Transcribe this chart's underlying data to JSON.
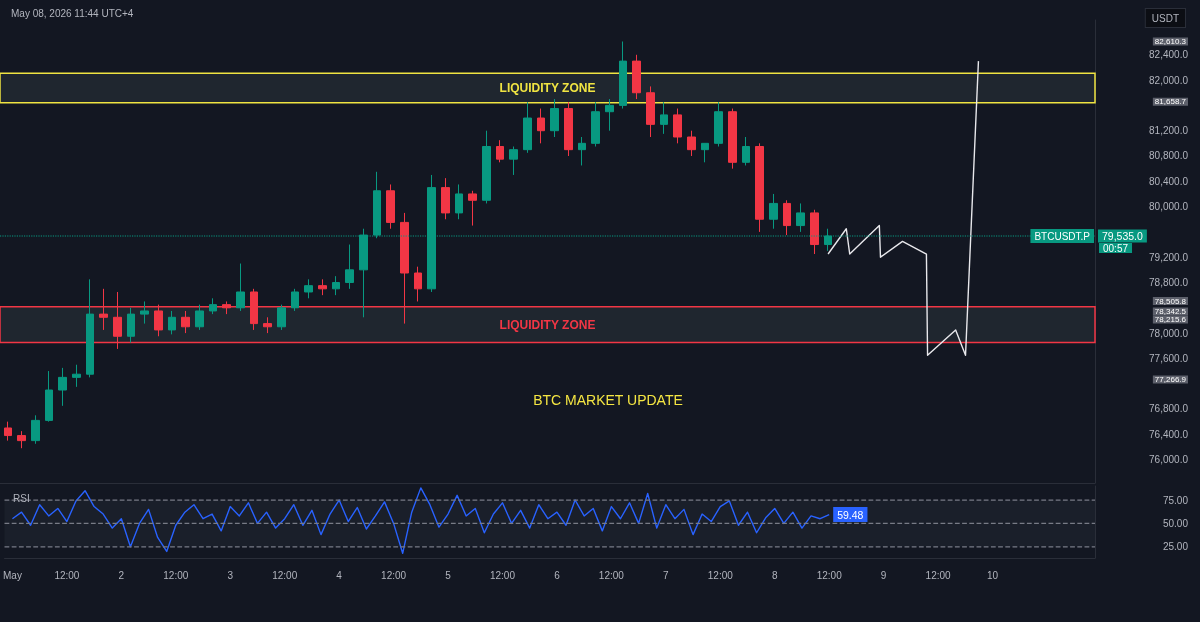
{
  "chart_data": [
    {
      "type": "candlestick",
      "title": "BTC MARKET UPDATE",
      "subtitle": "May 08, 2026 11:44 UTC+4",
      "annotations": [
        "USDT",
        "BTCUSDT.P",
        "00:57"
      ],
      "series": [
        {
          "type": "line",
          "color": "#e8e8ec",
          "x": [
            "2026-05-08T12:00",
            "2026-05-08T16:00",
            "2026-05-08T16:45",
            "2026-05-08T23:15",
            "2026-05-08T23:30",
            "2026-05-09T04:20",
            "2026-05-09T09:35",
            "2026-05-09T09:50",
            "2026-05-09T16:00",
            "2026-05-09T18:10",
            "2026-05-09T21:00"
          ],
          "values": [
            79250,
            79650,
            79250,
            79700,
            79200,
            79450,
            79250,
            77650,
            78050,
            77650,
            82300
          ]
        }
      ],
      "x": [
        "2026-05-01T00:00",
        "2026-05-01T03:00",
        "2026-05-01T06:00",
        "2026-05-01T09:00",
        "2026-05-01T12:00",
        "2026-05-01T15:00",
        "2026-05-01T18:00",
        "2026-05-01T21:00",
        "2026-05-02T00:00",
        "2026-05-02T03:00",
        "2026-05-02T06:00",
        "2026-05-02T09:00",
        "2026-05-02T12:00",
        "2026-05-02T15:00",
        "2026-05-02T18:00",
        "2026-05-02T21:00",
        "2026-05-03T00:00",
        "2026-05-03T03:00",
        "2026-05-03T06:00",
        "2026-05-03T09:00",
        "2026-05-03T12:00",
        "2026-05-03T15:00",
        "2026-05-03T18:00",
        "2026-05-03T21:00",
        "2026-05-04T00:00",
        "2026-05-04T03:00",
        "2026-05-04T06:00",
        "2026-05-04T09:00",
        "2026-05-04T12:00",
        "2026-05-04T15:00",
        "2026-05-04T18:00",
        "2026-05-04T21:00",
        "2026-05-05T00:00",
        "2026-05-05T03:00",
        "2026-05-05T06:00",
        "2026-05-05T09:00",
        "2026-05-05T12:00",
        "2026-05-05T15:00",
        "2026-05-05T18:00",
        "2026-05-05T21:00",
        "2026-05-06T00:00",
        "2026-05-06T03:00",
        "2026-05-06T06:00",
        "2026-05-06T09:00",
        "2026-05-06T12:00",
        "2026-05-06T15:00",
        "2026-05-06T18:00",
        "2026-05-06T21:00",
        "2026-05-07T00:00",
        "2026-05-07T03:00",
        "2026-05-07T06:00",
        "2026-05-07T09:00",
        "2026-05-07T12:00",
        "2026-05-07T15:00",
        "2026-05-07T18:00",
        "2026-05-07T21:00",
        "2026-05-08T00:00",
        "2026-05-08T03:00",
        "2026-05-08T06:00",
        "2026-05-08T09:00",
        "2026-05-08T12:00"
      ],
      "ohlc": [
        [
          76500,
          76600,
          76300,
          76380
        ],
        [
          76380,
          76450,
          76180,
          76300
        ],
        [
          76300,
          76700,
          76250,
          76620
        ],
        [
          76620,
          77400,
          76600,
          77100
        ],
        [
          77100,
          77450,
          76850,
          77300
        ],
        [
          77300,
          77500,
          77150,
          77350
        ],
        [
          77350,
          78850,
          77300,
          78300
        ],
        [
          78300,
          78700,
          78050,
          78250
        ],
        [
          78250,
          78650,
          77750,
          77950
        ],
        [
          77950,
          78400,
          77850,
          78300
        ],
        [
          78300,
          78500,
          78150,
          78350
        ],
        [
          78350,
          78450,
          77950,
          78050
        ],
        [
          78050,
          78350,
          77980,
          78250
        ],
        [
          78250,
          78350,
          78000,
          78100
        ],
        [
          78100,
          78450,
          78050,
          78350
        ],
        [
          78350,
          78550,
          78300,
          78450
        ],
        [
          78450,
          78500,
          78300,
          78400
        ],
        [
          78400,
          79100,
          78350,
          78650
        ],
        [
          78650,
          78700,
          78050,
          78150
        ],
        [
          78150,
          78250,
          78000,
          78100
        ],
        [
          78100,
          78450,
          78050,
          78400
        ],
        [
          78400,
          78700,
          78350,
          78650
        ],
        [
          78650,
          78850,
          78550,
          78750
        ],
        [
          78750,
          78850,
          78600,
          78700
        ],
        [
          78700,
          78900,
          78600,
          78800
        ],
        [
          78800,
          79400,
          78700,
          79000
        ],
        [
          79000,
          79650,
          78250,
          79550
        ],
        [
          79550,
          80550,
          79500,
          80250
        ],
        [
          80250,
          80350,
          79650,
          79750
        ],
        [
          79750,
          79900,
          78150,
          78950
        ],
        [
          78950,
          79050,
          78500,
          78700
        ],
        [
          78700,
          80500,
          78650,
          80300
        ],
        [
          80300,
          80450,
          79800,
          79900
        ],
        [
          79900,
          80350,
          79800,
          80200
        ],
        [
          80200,
          80250,
          79700,
          80100
        ],
        [
          80100,
          81200,
          80050,
          80950
        ],
        [
          80950,
          81050,
          80700,
          80750
        ],
        [
          80750,
          80950,
          80500,
          80900
        ],
        [
          80900,
          81650,
          80850,
          81400
        ],
        [
          81400,
          81550,
          81000,
          81200
        ],
        [
          81200,
          81700,
          81100,
          81550
        ],
        [
          81550,
          81650,
          80800,
          80900
        ],
        [
          80900,
          81100,
          80650,
          81000
        ],
        [
          81000,
          81650,
          80950,
          81500
        ],
        [
          81500,
          81700,
          81200,
          81600
        ],
        [
          81600,
          82610.3,
          81550,
          82300
        ],
        [
          82300,
          82400,
          81700,
          81800
        ],
        [
          81800,
          81900,
          81100,
          81300
        ],
        [
          81300,
          81650,
          81150,
          81450
        ],
        [
          81450,
          81550,
          81000,
          81100
        ],
        [
          81100,
          81200,
          80800,
          80900
        ],
        [
          80900,
          81000,
          80700,
          81000
        ],
        [
          81000,
          81650,
          80950,
          81500
        ],
        [
          81500,
          81550,
          80600,
          80700
        ],
        [
          80700,
          81100,
          80650,
          80950
        ],
        [
          80950,
          81000,
          79600,
          79800
        ],
        [
          79800,
          80200,
          79650,
          80050
        ],
        [
          80050,
          80100,
          79550,
          79700
        ],
        [
          79700,
          80050,
          79600,
          79900
        ],
        [
          79900,
          79950,
          79250,
          79400
        ],
        [
          79400,
          79650,
          79300,
          79535
        ]
      ],
      "xlim": [
        "2026-04-30T22:15",
        "2026-05-10T22:35"
      ],
      "ylim": [
        75630,
        82950
      ],
      "yticks": [
        {
          "value": 76000,
          "label": "76,000.0"
        },
        {
          "value": 76400,
          "label": "76,400.0"
        },
        {
          "value": 76800,
          "label": "76,800.0"
        },
        {
          "value": 77266.9,
          "label": "77,266.9"
        },
        {
          "value": 77600,
          "label": "77,600.0"
        },
        {
          "value": 78000,
          "label": "78,000.0"
        },
        {
          "value": 78215.6,
          "label": "78,215.6"
        },
        {
          "value": 78342.5,
          "label": "78,342.5"
        },
        {
          "value": 78505.8,
          "label": "78,505.8"
        },
        {
          "value": 78800,
          "label": "78,800.0"
        },
        {
          "value": 79200,
          "label": "79,200.0"
        },
        {
          "value": 80000,
          "label": "80,000.0"
        },
        {
          "value": 80400,
          "label": "80,400.0"
        },
        {
          "value": 80800,
          "label": "80,800.0"
        },
        {
          "value": 81200,
          "label": "81,200.0"
        },
        {
          "value": 81658.7,
          "label": "81,658.7"
        },
        {
          "value": 82000,
          "label": "82,000.0"
        },
        {
          "value": 82400,
          "label": "82,400.0"
        },
        {
          "value": 82610.3,
          "label": "82,610.3"
        }
      ],
      "tick_labels": "y",
      "ref_lines": [
        {
          "axis": "y",
          "value": 79535,
          "label": "79,535.0",
          "color": "#089981",
          "line_style": "dotted"
        }
      ],
      "bands": [
        {
          "axis": "y",
          "from": 81640,
          "to": 82110,
          "label": "LIQUIDITY ZONE",
          "color": "#f0e442"
        },
        {
          "axis": "y",
          "from": 77850,
          "to": 78415,
          "label": "LIQUIDITY ZONE",
          "color": "#f23645"
        }
      ]
    },
    {
      "type": "line",
      "title": "RSI",
      "x": [
        "2026-05-01T00:00",
        "2026-05-01T02:00",
        "2026-05-01T04:00",
        "2026-05-01T06:00",
        "2026-05-01T08:00",
        "2026-05-01T10:00",
        "2026-05-01T12:00",
        "2026-05-01T14:00",
        "2026-05-01T16:00",
        "2026-05-01T18:00",
        "2026-05-01T20:00",
        "2026-05-01T22:00",
        "2026-05-02T00:00",
        "2026-05-02T02:00",
        "2026-05-02T04:00",
        "2026-05-02T06:00",
        "2026-05-02T08:00",
        "2026-05-02T10:00",
        "2026-05-02T12:00",
        "2026-05-02T14:00",
        "2026-05-02T16:00",
        "2026-05-02T18:00",
        "2026-05-02T20:00",
        "2026-05-02T22:00",
        "2026-05-03T00:00",
        "2026-05-03T02:00",
        "2026-05-03T04:00",
        "2026-05-03T06:00",
        "2026-05-03T08:00",
        "2026-05-03T10:00",
        "2026-05-03T12:00",
        "2026-05-03T14:00",
        "2026-05-03T16:00",
        "2026-05-03T18:00",
        "2026-05-03T20:00",
        "2026-05-03T22:00",
        "2026-05-04T00:00",
        "2026-05-04T02:00",
        "2026-05-04T04:00",
        "2026-05-04T06:00",
        "2026-05-04T08:00",
        "2026-05-04T10:00",
        "2026-05-04T12:00",
        "2026-05-04T14:00",
        "2026-05-04T16:00",
        "2026-05-04T18:00",
        "2026-05-04T20:00",
        "2026-05-04T22:00",
        "2026-05-05T00:00",
        "2026-05-05T02:00",
        "2026-05-05T04:00",
        "2026-05-05T06:00",
        "2026-05-05T08:00",
        "2026-05-05T10:00",
        "2026-05-05T12:00",
        "2026-05-05T14:00",
        "2026-05-05T16:00",
        "2026-05-05T18:00",
        "2026-05-05T20:00",
        "2026-05-05T22:00",
        "2026-05-06T00:00",
        "2026-05-06T02:00",
        "2026-05-06T04:00",
        "2026-05-06T06:00",
        "2026-05-06T08:00",
        "2026-05-06T10:00",
        "2026-05-06T12:00",
        "2026-05-06T14:00",
        "2026-05-06T16:00",
        "2026-05-06T18:00",
        "2026-05-06T20:00",
        "2026-05-06T22:00",
        "2026-05-07T00:00",
        "2026-05-07T02:00",
        "2026-05-07T04:00",
        "2026-05-07T06:00",
        "2026-05-07T08:00",
        "2026-05-07T10:00",
        "2026-05-07T12:00",
        "2026-05-07T14:00",
        "2026-05-07T16:00",
        "2026-05-07T18:00",
        "2026-05-07T20:00",
        "2026-05-07T22:00",
        "2026-05-08T00:00",
        "2026-05-08T02:00",
        "2026-05-08T04:00",
        "2026-05-08T06:00",
        "2026-05-08T08:00",
        "2026-05-08T10:00",
        "2026-05-08T12:00"
      ],
      "series": [
        {
          "color": "#2962ff",
          "values": [
            55,
            62,
            48,
            70,
            58,
            66,
            52,
            74,
            85,
            68,
            60,
            45,
            55,
            25,
            50,
            65,
            35,
            20,
            48,
            62,
            70,
            55,
            60,
            42,
            68,
            58,
            72,
            50,
            62,
            45,
            55,
            70,
            48,
            64,
            38,
            60,
            75,
            52,
            67,
            44,
            58,
            73,
            50,
            18,
            62,
            88,
            70,
            46,
            60,
            80,
            58,
            66,
            40,
            60,
            72,
            50,
            64,
            45,
            70,
            55,
            62,
            48,
            75,
            58,
            66,
            42,
            68,
            55,
            72,
            50,
            82,
            45,
            70,
            55,
            65,
            38,
            60,
            52,
            68,
            74,
            48,
            62,
            40,
            56,
            66,
            50,
            62,
            45,
            58,
            55,
            59.48
          ],
          "value_labels": [
            null,
            null,
            null,
            null,
            null,
            null,
            null,
            null,
            null,
            null,
            null,
            null,
            null,
            null,
            null,
            null,
            null,
            null,
            null,
            null,
            null,
            null,
            null,
            null,
            null,
            null,
            null,
            null,
            null,
            null,
            null,
            null,
            null,
            null,
            null,
            null,
            null,
            null,
            null,
            null,
            null,
            null,
            null,
            null,
            null,
            null,
            null,
            null,
            null,
            null,
            null,
            null,
            null,
            null,
            null,
            null,
            null,
            null,
            null,
            null,
            null,
            null,
            null,
            null,
            null,
            null,
            null,
            null,
            null,
            null,
            null,
            null,
            null,
            null,
            null,
            null,
            null,
            null,
            null,
            null,
            null,
            null,
            null,
            null,
            null,
            null,
            null,
            null,
            null,
            null,
            "59.48"
          ]
        }
      ],
      "xlim": [
        "2026-04-30T22:15",
        "2026-05-10T22:35"
      ],
      "xticks": [
        {
          "value": "2026-05-01",
          "label": "May"
        },
        {
          "value": "2026-05-01T12:00",
          "label": "12:00"
        },
        {
          "value": "2026-05-02",
          "label": "2"
        },
        {
          "value": "2026-05-02T12:00",
          "label": "12:00"
        },
        {
          "value": "2026-05-03",
          "label": "3"
        },
        {
          "value": "2026-05-03T12:00",
          "label": "12:00"
        },
        {
          "value": "2026-05-04",
          "label": "4"
        },
        {
          "value": "2026-05-04T12:00",
          "label": "12:00"
        },
        {
          "value": "2026-05-05",
          "label": "5"
        },
        {
          "value": "2026-05-05T12:00",
          "label": "12:00"
        },
        {
          "value": "2026-05-06",
          "label": "6"
        },
        {
          "value": "2026-05-06T12:00",
          "label": "12:00"
        },
        {
          "value": "2026-05-07",
          "label": "7"
        },
        {
          "value": "2026-05-07T12:00",
          "label": "12:00"
        },
        {
          "value": "2026-05-08",
          "label": "8"
        },
        {
          "value": "2026-05-08T12:00",
          "label": "12:00"
        },
        {
          "value": "2026-05-09",
          "label": "9"
        },
        {
          "value": "2026-05-09T12:00",
          "label": "12:00"
        },
        {
          "value": "2026-05-10",
          "label": "10"
        }
      ],
      "ylim": [
        13,
        90
      ],
      "yticks": [
        {
          "value": 25,
          "label": "25.00"
        },
        {
          "value": 50,
          "label": "50.00"
        },
        {
          "value": 75,
          "label": "75.00"
        }
      ],
      "ref_lines": [
        {
          "axis": "y",
          "value": 75,
          "label": null,
          "color": "#787b86",
          "line_style": "dashed"
        },
        {
          "axis": "y",
          "value": 50,
          "label": null,
          "color": "#787b86",
          "line_style": "dashed"
        },
        {
          "axis": "y",
          "value": 25,
          "label": null,
          "color": "#787b86",
          "line_style": "dashed"
        }
      ],
      "bands": [
        {
          "axis": "y",
          "from": 25,
          "to": 75,
          "label": null
        }
      ]
    }
  ]
}
